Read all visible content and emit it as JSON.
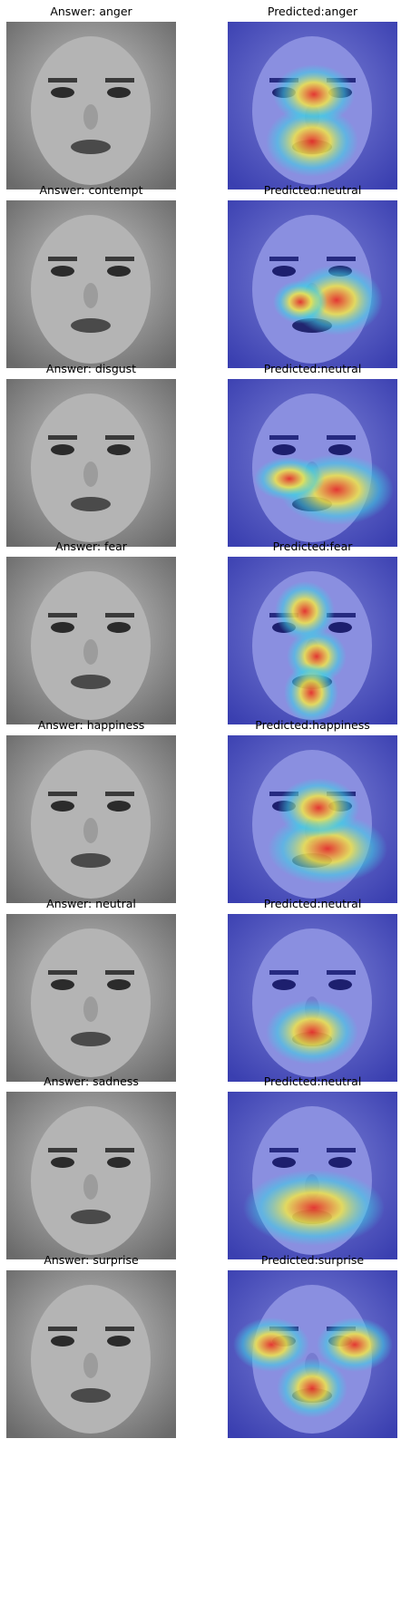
{
  "rows": [
    {
      "answer": "Answer: anger",
      "predicted": "Predicted:anger"
    },
    {
      "answer": "Answer: contempt",
      "predicted": "Predicted:neutral"
    },
    {
      "answer": "Answer: disgust",
      "predicted": "Predicted:neutral"
    },
    {
      "answer": "Answer: fear",
      "predicted": "Predicted:fear"
    },
    {
      "answer": "Answer: happiness",
      "predicted": "Predicted:happiness"
    },
    {
      "answer": "Answer: neutral",
      "predicted": "Predicted:neutral"
    },
    {
      "answer": "Answer: sadness",
      "predicted": "Predicted:neutral"
    },
    {
      "answer": "Answer: surprise",
      "predicted": "Predicted:surprise"
    }
  ],
  "colors": {
    "heatmap_base": "#2a2fb8",
    "heatmap_warm": "#e8322a",
    "heatmap_mid": "#f2e64a",
    "heatmap_cool": "#3fd0e6"
  }
}
